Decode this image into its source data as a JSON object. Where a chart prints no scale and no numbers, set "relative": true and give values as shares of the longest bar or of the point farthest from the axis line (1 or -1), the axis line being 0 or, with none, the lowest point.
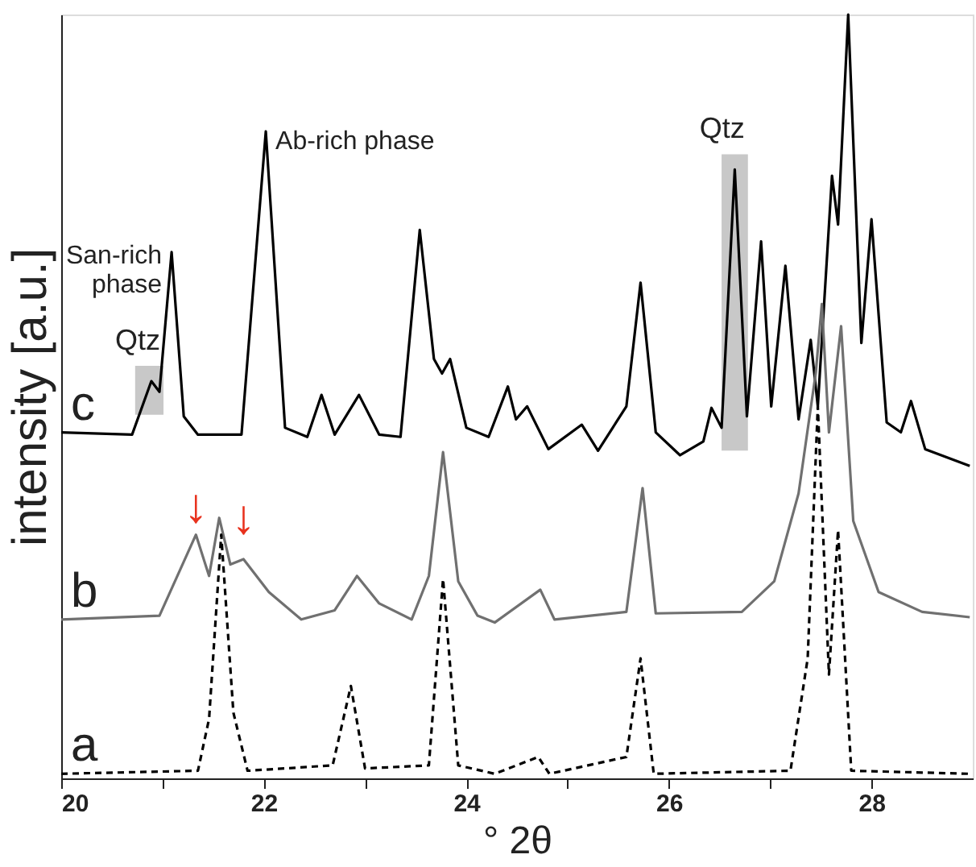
{
  "chart_data": {
    "type": "line",
    "relative": true,
    "xlabel": "° 2θ",
    "ylabel": "intensity [a.u.]",
    "xlim": [
      20,
      29
    ],
    "xticks": [
      20,
      {
        "value": 21,
        "label": null
      },
      22,
      {
        "value": 23,
        "label": null
      },
      24,
      {
        "value": 25,
        "label": null
      },
      26,
      {
        "value": 27,
        "label": null
      },
      28
    ],
    "tick_labels": "x",
    "grid": false,
    "series": [
      {
        "name": "c",
        "color": "#000000",
        "line_style": "solid",
        "x": [
          20.0,
          20.7,
          20.89,
          20.97,
          21.09,
          21.21,
          21.35,
          21.78,
          22.02,
          22.21,
          22.43,
          22.57,
          22.7,
          22.94,
          23.14,
          23.35,
          23.54,
          23.68,
          23.76,
          23.84,
          24.0,
          24.22,
          24.41,
          24.49,
          24.6,
          24.81,
          25.14,
          25.3,
          25.58,
          25.72,
          25.87,
          26.11,
          26.34,
          26.42,
          26.52,
          26.65,
          26.77,
          26.91,
          27.01,
          27.15,
          27.28,
          27.4,
          27.47,
          27.61,
          27.67,
          27.77,
          27.9,
          28.0,
          28.15,
          28.29,
          28.39,
          28.53,
          28.97
        ],
        "values": [
          0.453,
          0.45,
          0.52,
          0.506,
          0.689,
          0.474,
          0.45,
          0.45,
          0.847,
          0.459,
          0.447,
          0.502,
          0.45,
          0.502,
          0.45,
          0.447,
          0.718,
          0.549,
          0.53,
          0.549,
          0.459,
          0.447,
          0.513,
          0.47,
          0.487,
          0.431,
          0.463,
          0.429,
          0.487,
          0.649,
          0.453,
          0.423,
          0.441,
          0.485,
          0.459,
          0.797,
          0.474,
          0.703,
          0.487,
          0.671,
          0.47,
          0.574,
          0.487,
          0.789,
          0.725,
          1.0,
          0.57,
          0.732,
          0.466,
          0.453,
          0.494,
          0.431,
          0.409
        ]
      },
      {
        "name": "b",
        "color": "#707070",
        "line_style": "solid",
        "x": [
          20.0,
          20.97,
          21.33,
          21.46,
          21.56,
          21.67,
          21.8,
          22.05,
          22.37,
          22.7,
          22.92,
          23.14,
          23.46,
          23.63,
          23.77,
          23.92,
          24.11,
          24.28,
          24.73,
          24.87,
          25.58,
          25.74,
          25.87,
          26.72,
          27.04,
          27.28,
          27.45,
          27.51,
          27.58,
          27.7,
          27.82,
          28.07,
          28.5,
          28.97
        ],
        "values": [
          0.208,
          0.213,
          0.319,
          0.265,
          0.341,
          0.28,
          0.287,
          0.244,
          0.208,
          0.22,
          0.265,
          0.229,
          0.208,
          0.265,
          0.427,
          0.258,
          0.213,
          0.204,
          0.247,
          0.208,
          0.218,
          0.38,
          0.216,
          0.218,
          0.258,
          0.373,
          0.531,
          0.621,
          0.453,
          0.592,
          0.337,
          0.244,
          0.218,
          0.211
        ]
      },
      {
        "name": "a",
        "color": "#000000",
        "line_style": "dashed",
        "x": [
          20.0,
          21.35,
          21.46,
          21.58,
          21.7,
          21.84,
          22.68,
          22.86,
          23.0,
          23.63,
          23.77,
          23.92,
          24.28,
          24.71,
          24.82,
          25.58,
          25.72,
          25.85,
          27.2,
          27.37,
          27.47,
          27.58,
          27.67,
          27.8,
          28.97
        ],
        "values": [
          0.006,
          0.01,
          0.078,
          0.319,
          0.086,
          0.01,
          0.017,
          0.121,
          0.013,
          0.017,
          0.261,
          0.017,
          0.006,
          0.028,
          0.006,
          0.028,
          0.157,
          0.006,
          0.01,
          0.157,
          0.487,
          0.136,
          0.325,
          0.01,
          0.006
        ]
      }
    ],
    "bands": [
      {
        "axis": "x",
        "from": 20.73,
        "to": 21.01,
        "label": "Qtz",
        "color": "#c8c8c8"
      },
      {
        "axis": "x",
        "from": 26.52,
        "to": 26.78,
        "label": "Qtz",
        "color": "#c8c8c8"
      }
    ],
    "annotations": [
      {
        "text": "San-rich\nphase",
        "x": 21.09,
        "y": 0.689
      },
      {
        "text": "Ab-rich phase",
        "x": 22.02,
        "y": 0.847
      },
      {
        "text": "↓",
        "x": 21.33,
        "y": 0.319
      },
      {
        "text": "↓",
        "x": 21.8,
        "y": 0.287
      }
    ]
  }
}
